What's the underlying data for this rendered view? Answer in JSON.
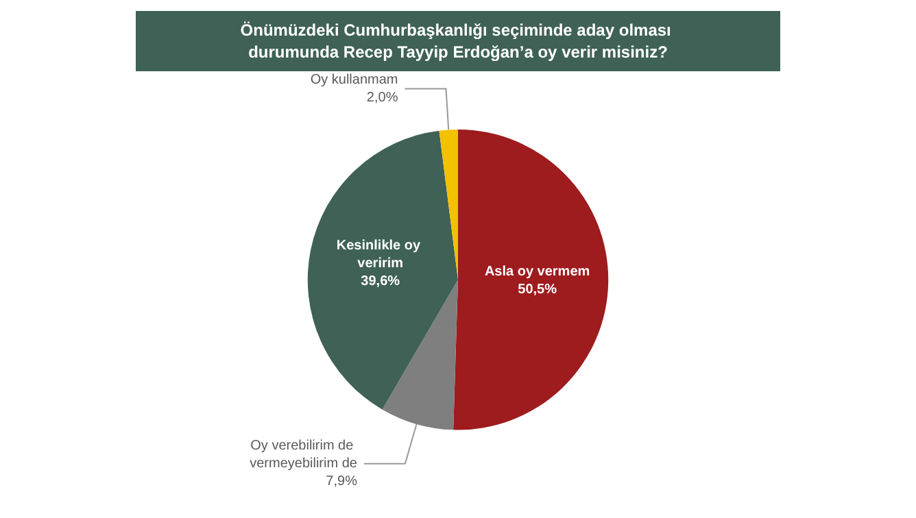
{
  "chart_data": {
    "type": "pie",
    "title": "Önümüzdeki Cumhurbaşkanlığı seçiminde aday olması durumunda Recep Tayyip Erdoğan’a oy verir misiniz?",
    "categories": [
      "Asla oy vermem",
      "Oy verebilirim de vermeyebilirim de",
      "Kesinlikle oy veririm",
      "Oy kullanmam"
    ],
    "values": [
      50.5,
      7.9,
      39.6,
      2.0
    ],
    "value_labels": [
      "50,5%",
      "7,9%",
      "39,6%",
      "2,0%"
    ],
    "colors": [
      "#9e1b1e",
      "#7f7f7f",
      "#3f6156",
      "#f2c100"
    ]
  }
}
